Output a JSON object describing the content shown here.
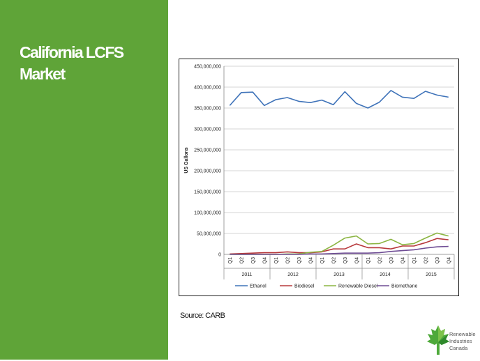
{
  "slide": {
    "title_line1": "California LCFS",
    "title_line2": "Market",
    "source": "Source: CARB",
    "accent_color": "#5fa438"
  },
  "logo": {
    "icon": "maple-leaf-logo-icon",
    "line1": "Renewable",
    "line2": "Industries",
    "line3": "Canada"
  },
  "chart_data": {
    "type": "line",
    "title": "",
    "xlabel": "",
    "ylabel": "US Gallons",
    "ylim": [
      0,
      450000000
    ],
    "yticks": [
      0,
      50000000,
      100000000,
      150000000,
      200000000,
      250000000,
      300000000,
      350000000,
      400000000,
      450000000
    ],
    "ytick_labels": [
      "0",
      "50,000,000",
      "100,000,000",
      "150,000,000",
      "200,000,000",
      "250,000,000",
      "300,000,000",
      "350,000,000",
      "400,000,000",
      "450,000,000"
    ],
    "grid": true,
    "legend_position": "bottom",
    "categories": [
      "Q1",
      "Q2",
      "Q3",
      "Q4",
      "Q1",
      "Q2",
      "Q3",
      "Q4",
      "Q1",
      "Q2",
      "Q3",
      "Q4",
      "Q1",
      "Q2",
      "Q3",
      "Q4",
      "Q1",
      "Q2",
      "Q3",
      "Q4"
    ],
    "year_groups": [
      "2011",
      "2012",
      "2013",
      "2014",
      "2015"
    ],
    "series": [
      {
        "name": "Ethanol",
        "color": "#3f73b9",
        "values": [
          356000000,
          387000000,
          388000000,
          356000000,
          370000000,
          375000000,
          366000000,
          363000000,
          369000000,
          358000000,
          389000000,
          361000000,
          350000000,
          364000000,
          392000000,
          376000000,
          373000000,
          390000000,
          381000000,
          376000000
        ]
      },
      {
        "name": "Biodiesel",
        "color": "#b7383b",
        "values": [
          1000000,
          2000000,
          3000000,
          4000000,
          4000000,
          6000000,
          4000000,
          4000000,
          6000000,
          13000000,
          13000000,
          25000000,
          16000000,
          16000000,
          13000000,
          20000000,
          20000000,
          28000000,
          38000000,
          35000000
        ]
      },
      {
        "name": "Renewable Diesel",
        "color": "#8bb542",
        "values": [
          0,
          0,
          0,
          0,
          0,
          1000000,
          1000000,
          5000000,
          7000000,
          22000000,
          39000000,
          44000000,
          25000000,
          26000000,
          36000000,
          23000000,
          26000000,
          39000000,
          51000000,
          44000000
        ]
      },
      {
        "name": "Biomethane",
        "color": "#6e4c94",
        "values": [
          0,
          0,
          0,
          0,
          0,
          0,
          0,
          1000000,
          1000000,
          2000000,
          3000000,
          3000000,
          3000000,
          4000000,
          7000000,
          9000000,
          11000000,
          15000000,
          18000000,
          19000000
        ]
      }
    ]
  }
}
